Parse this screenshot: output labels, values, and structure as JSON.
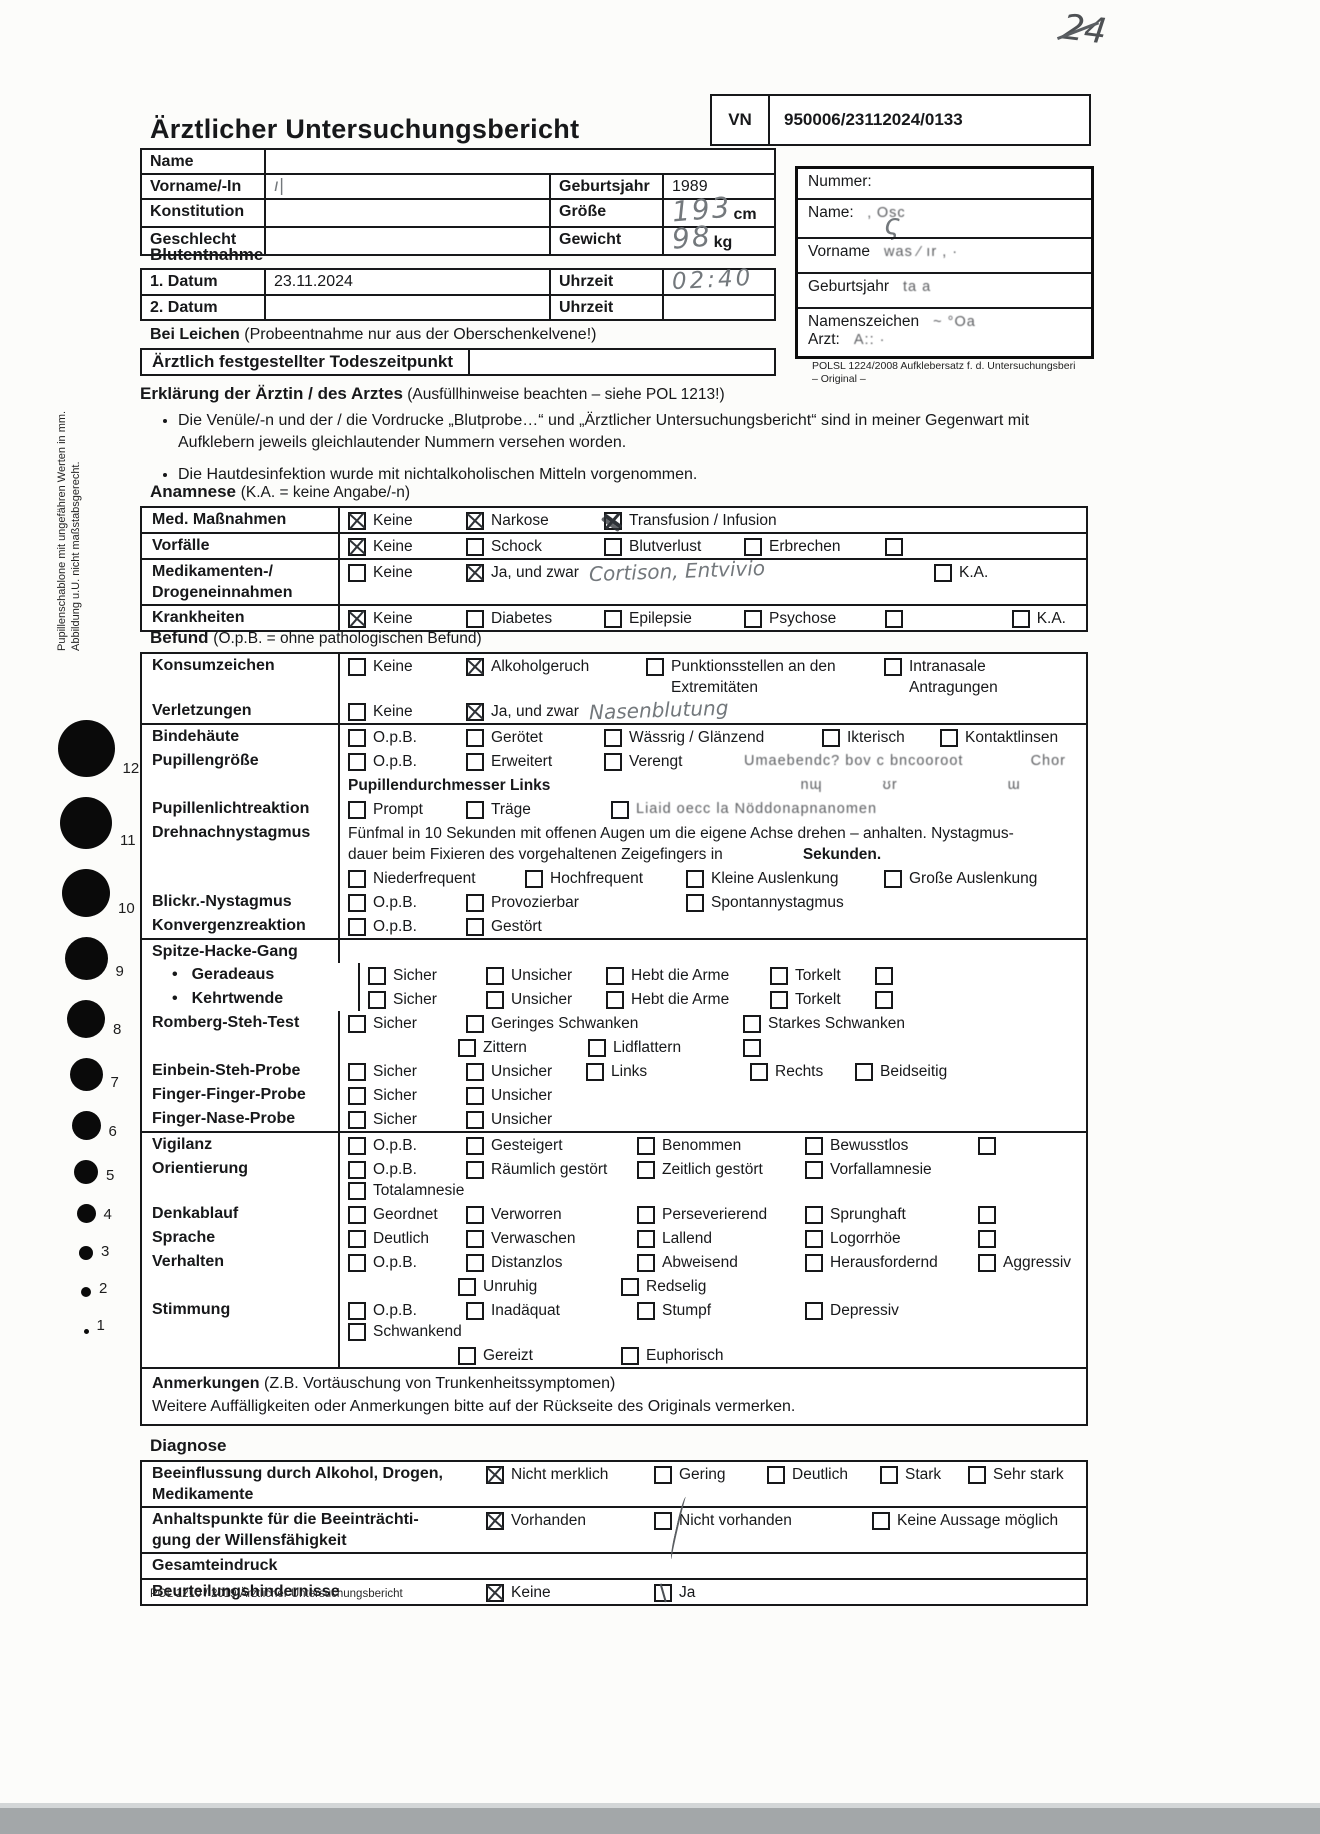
{
  "colors": {
    "ink": "#17181a",
    "pencil": "#73787c",
    "paper": "#fcfcfa",
    "scan_band": "#a3a7a9"
  },
  "corner_note": "24",
  "side_notes": [
    "Pupillenschablone mit ungefähren Werten in mm.",
    "Abbildung u.U. nicht maßstabsgerecht."
  ],
  "pupil_scale": [
    12,
    11,
    10,
    9,
    8,
    7,
    6,
    5,
    4,
    3,
    2,
    1
  ],
  "header": {
    "title": "Ärztlicher Untersuchungsbericht",
    "vn_label": "VN",
    "vn_value": "950006/23112024/0133"
  },
  "person": {
    "rows": [
      {
        "label": "Name",
        "value": ""
      },
      {
        "label": "Vorname/-In",
        "hand": "ı|",
        "rlabel": "Geburtsjahr",
        "rvalue": "1989"
      },
      {
        "label": "Konstitution",
        "value": "",
        "rlabel": "Größe",
        "rhand": "193",
        "runit": "cm"
      },
      {
        "label": "Geschlecht",
        "value": "",
        "rlabel": "Gewicht",
        "rhand": "98",
        "runit": "kg"
      }
    ]
  },
  "blut": {
    "heading": "Blutentnahme",
    "rows": [
      {
        "label": "1. Datum",
        "value": "23.11.2024",
        "tlabel": "Uhrzeit",
        "thand": "02:40"
      },
      {
        "label": "2. Datum",
        "value": "",
        "tlabel": "Uhrzeit",
        "thand": ""
      }
    ]
  },
  "leichen": {
    "heading": "Bei Leichen",
    "hint": "(Probeentnahme nur aus der Oberschenkelvene!)",
    "row_label": "Ärztlich festgestellter Todeszeitpunkt"
  },
  "sticker": {
    "rows": [
      {
        "label": "Nummer:"
      },
      {
        "label": "Name:",
        "hand": "ς",
        "smudge": "‚  Osc"
      },
      {
        "label": "Vorname",
        "smudge": "was ∕ ır   ,      ·"
      },
      {
        "label": "Geburtsjahr",
        "smudge": "ta          a"
      },
      {
        "label": "Namenszeichen",
        "smudge": "~  °Oa",
        "label2": "Arzt:",
        "smudge2": "A::  ·"
      }
    ],
    "caption": "POLSL 1224/2008 Aufklebersatz f. d. Untersuchungsberi",
    "caption2": "– Original –"
  },
  "erklaerung": {
    "heading": "Erklärung der Ärztin / des Arztes",
    "hint": "(Ausfüllhinweise beachten – siehe POL 1213!)",
    "bullets": [
      "Die Venüle/-n und der / die Vordrucke „Blutprobe…“ und „Ärztlicher Untersuchungsbericht“ sind in meiner Gegenwart mit Aufklebern jeweils gleichlautender Nummern versehen worden.",
      "Die Hautdesinfektion wurde mit nichtalkoholischen Mitteln vorgenommen."
    ]
  },
  "anamnese": {
    "heading": "Anamnese",
    "hint": "(K.A. = keine Angabe/-n)",
    "rows": [
      {
        "label": "Med. Maßnahmen",
        "items": [
          {
            "t": "Keine",
            "x": true
          },
          {
            "t": "Narkose",
            "x": true
          },
          {
            "t": "Transfusion / Infusion",
            "x": true,
            "scribble": true
          }
        ]
      },
      {
        "label": "Vorfälle",
        "items": [
          {
            "t": "Keine",
            "x": true
          },
          {
            "t": "Schock"
          },
          {
            "t": "Blutverlust"
          },
          {
            "t": "Erbrechen"
          },
          {
            "t": ""
          }
        ]
      },
      {
        "label": "Medikamenten-/",
        "label2": "Drogeneinnahmen",
        "items": [
          {
            "t": "Keine"
          },
          {
            "t": "Ja, und zwar",
            "x": true,
            "note": "Cortison, Entvivio"
          },
          {
            "t": "K.A.",
            "push": true
          }
        ]
      },
      {
        "label": "Krankheiten",
        "items": [
          {
            "t": "Keine",
            "x": true
          },
          {
            "t": "Diabetes"
          },
          {
            "t": "Epilepsie"
          },
          {
            "t": "Psychose"
          },
          {
            "t": ""
          },
          {
            "t": "K.A.",
            "push": true
          }
        ]
      }
    ]
  },
  "befund": {
    "heading": "Befund",
    "hint": "(O.p.B. = ohne pathologischen Befund)",
    "rows": [
      {
        "label": "Konsumzeichen",
        "items": [
          {
            "t": "Keine"
          },
          {
            "t": "Alkoholgeruch",
            "x": true
          },
          {
            "t": "Punktionsstellen an den Extremitäten"
          },
          {
            "t": "Intranasale Antragungen"
          }
        ]
      },
      {
        "label": "Verletzungen",
        "items": [
          {
            "t": "Keine"
          },
          {
            "t": "Ja, und zwar",
            "x": true,
            "note": "Nasenblutung"
          }
        ]
      },
      {
        "label": "Bindehäute",
        "line": true,
        "items": [
          {
            "t": "O.p.B."
          },
          {
            "t": "Gerötet"
          },
          {
            "t": "Wässrig / Glänzend"
          },
          {
            "t": "Ikterisch"
          },
          {
            "t": "Kontaktlinsen"
          }
        ]
      },
      {
        "label": "Pupillengröße",
        "items": [
          {
            "t": "O.p.B."
          },
          {
            "t": "Erweitert"
          },
          {
            "t": "Verengt"
          },
          {
            "t": "Umaebendc? bov c bncooroot",
            "box": false,
            "smudge": true
          },
          {
            "t": "Chor",
            "box": false,
            "smudge": true,
            "push": true
          }
        ]
      },
      {
        "label": "",
        "text": "Pupillendurchmesser Links",
        "text_bold": true,
        "smudges": [
          "nɰ",
          "ʊr",
          "ɯ"
        ]
      },
      {
        "label": "Pupillenlichtreaktion",
        "items": [
          {
            "t": "Prompt"
          },
          {
            "t": "Träge"
          },
          {
            "t": "Liaid oecc la Nöddonapnanomen",
            "smudge": true
          }
        ]
      },
      {
        "label": "Drehnachnystagmus",
        "text": "Fünfmal in 10 Sekunden mit offenen Augen um die eigene Achse drehen – anhalten. Nystagmus-",
        "text2": "dauer beim Fixieren des vorgehaltenen Zeigefingers in",
        "bold": "Sekunden."
      },
      {
        "label": "",
        "items": [
          {
            "t": "Niederfrequent"
          },
          {
            "t": "Hochfrequent"
          },
          {
            "t": "Kleine Auslenkung"
          },
          {
            "t": "Große Auslenkung"
          }
        ]
      },
      {
        "label": "Blickr.-Nystagmus",
        "items": [
          {
            "t": "O.p.B."
          },
          {
            "t": "Provozierbar"
          },
          {
            "t": "Spontannystagmus"
          }
        ]
      },
      {
        "label": "Konvergenzreaktion",
        "items": [
          {
            "t": "O.p.B."
          },
          {
            "t": "Gestört"
          }
        ]
      },
      {
        "label": "Spitze-Hacke-Gang",
        "line": true,
        "items": []
      },
      {
        "label": "Geradeaus",
        "bullet": true,
        "items": [
          {
            "t": "Sicher"
          },
          {
            "t": "Unsicher"
          },
          {
            "t": "Hebt die Arme"
          },
          {
            "t": "Torkelt"
          },
          {
            "t": ""
          }
        ]
      },
      {
        "label": "Kehrtwende",
        "bullet": true,
        "items": [
          {
            "t": "Sicher"
          },
          {
            "t": "Unsicher"
          },
          {
            "t": "Hebt die Arme"
          },
          {
            "t": "Torkelt"
          },
          {
            "t": ""
          }
        ]
      },
      {
        "label": "Romberg-Steh-Test",
        "items": [
          {
            "t": "Sicher"
          },
          {
            "t": "Geringes Schwanken"
          },
          {
            "t": "Starkes Schwanken"
          }
        ]
      },
      {
        "label": "",
        "indent": true,
        "items": [
          {
            "t": "Zittern"
          },
          {
            "t": "Lidflattern"
          },
          {
            "t": ""
          }
        ]
      },
      {
        "label": "Einbein-Steh-Probe",
        "items": [
          {
            "t": "Sicher"
          },
          {
            "t": "Unsicher"
          },
          {
            "t": "Links"
          },
          {
            "t": "Rechts"
          },
          {
            "t": "Beidseitig"
          }
        ]
      },
      {
        "label": "Finger-Finger-Probe",
        "items": [
          {
            "t": "Sicher"
          },
          {
            "t": "Unsicher"
          }
        ]
      },
      {
        "label": "Finger-Nase-Probe",
        "items": [
          {
            "t": "Sicher"
          },
          {
            "t": "Unsicher"
          }
        ]
      },
      {
        "label": "Vigilanz",
        "line": true,
        "items": [
          {
            "t": "O.p.B."
          },
          {
            "t": "Gesteigert"
          },
          {
            "t": "Benommen"
          },
          {
            "t": "Bewusstlos"
          },
          {
            "t": ""
          }
        ]
      },
      {
        "label": "Orientierung",
        "items": [
          {
            "t": "O.p.B."
          },
          {
            "t": "Räumlich gestört"
          },
          {
            "t": "Zeitlich gestört"
          },
          {
            "t": "Vorfallamnesie"
          },
          {
            "t": "Totalamnesie"
          }
        ]
      },
      {
        "label": "Denkablauf",
        "items": [
          {
            "t": "Geordnet"
          },
          {
            "t": "Verworren"
          },
          {
            "t": "Perseverierend"
          },
          {
            "t": "Sprunghaft"
          },
          {
            "t": ""
          }
        ]
      },
      {
        "label": "Sprache",
        "items": [
          {
            "t": "Deutlich"
          },
          {
            "t": "Verwaschen"
          },
          {
            "t": "Lallend"
          },
          {
            "t": "Logorrhöe"
          },
          {
            "t": ""
          }
        ]
      },
      {
        "label": "Verhalten",
        "items": [
          {
            "t": "O.p.B."
          },
          {
            "t": "Distanzlos"
          },
          {
            "t": "Abweisend"
          },
          {
            "t": "Herausfordernd"
          },
          {
            "t": "Aggressiv"
          }
        ]
      },
      {
        "label": "",
        "indent": true,
        "items": [
          {
            "t": "Unruhig"
          },
          {
            "t": "Redselig"
          }
        ]
      },
      {
        "label": "Stimmung",
        "items": [
          {
            "t": "O.p.B."
          },
          {
            "t": "Inadäquat"
          },
          {
            "t": "Stumpf"
          },
          {
            "t": "Depressiv"
          },
          {
            "t": "Schwankend"
          }
        ]
      },
      {
        "label": "",
        "indent": true,
        "items": [
          {
            "t": "Gereizt"
          },
          {
            "t": "Euphorisch"
          }
        ]
      }
    ]
  },
  "anmerkungen": {
    "heading": "Anmerkungen",
    "hint": "(Z.B. Vortäuschung von Trunkenheitssymptomen)",
    "line": "Weitere Auffälligkeiten oder Anmerkungen bitte auf der Rückseite des Originals vermerken."
  },
  "diagnose": {
    "heading": "Diagnose",
    "rows": [
      {
        "label": "Beeinflussung durch Alkohol, Drogen,",
        "label2": "Medikamente",
        "items": [
          {
            "t": "Nicht merklich",
            "x": true
          },
          {
            "t": "Gering"
          },
          {
            "t": "Deutlich"
          },
          {
            "t": "Stark"
          },
          {
            "t": "Sehr stark"
          }
        ]
      },
      {
        "label": "Anhaltspunkte für die Beeinträchti-",
        "label2": "gung der Willensfähigkeit",
        "items": [
          {
            "t": "Vorhanden",
            "x": true
          },
          {
            "t": "Nicht vorhanden"
          },
          {
            "t": "Keine Aussage möglich"
          }
        ]
      },
      {
        "label": "Gesamteindruck",
        "items": []
      },
      {
        "label": "Beurteilungshindernisse",
        "items": [
          {
            "t": "Keine",
            "x": true
          },
          {
            "t": "Ja",
            "stroke": true
          }
        ]
      }
    ]
  },
  "footer": "POL 1210 / 2019 Ärztlicher Untersuchungsbericht"
}
